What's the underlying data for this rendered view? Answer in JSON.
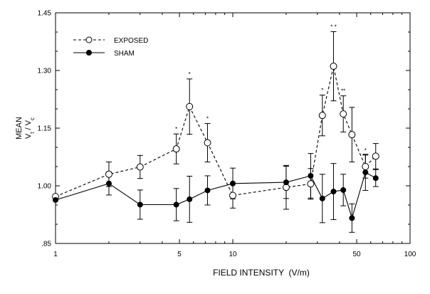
{
  "chart_data": {
    "type": "line",
    "x_scale": "log",
    "xlim": [
      1,
      100
    ],
    "ylim": [
      0.85,
      1.45
    ],
    "xlabel": "FIELD INTENSITY  (V/m)",
    "ylabel_line1": "MEAN",
    "ylabel_ratio": {
      "v": "V",
      "num_sub": "t",
      "sep": " / ",
      "den_sub": "c"
    },
    "x_ticks": [
      {
        "value": 1,
        "label": "1"
      },
      {
        "value": 5,
        "label": "5"
      },
      {
        "value": 10,
        "label": "10"
      },
      {
        "value": 50,
        "label": "50"
      },
      {
        "value": 100,
        "label": "100"
      }
    ],
    "y_ticks": [
      {
        "value": 0.85,
        "label": ".85"
      },
      {
        "value": 1.0,
        "label": "1.00"
      },
      {
        "value": 1.15,
        "label": "1.15"
      },
      {
        "value": 1.3,
        "label": "1.30"
      },
      {
        "value": 1.45,
        "label": "1.45"
      }
    ],
    "legend": {
      "position": "top-left"
    },
    "series": [
      {
        "name": "EXPOSED",
        "line_style": "dashed",
        "marker": "open-circle",
        "points": [
          {
            "x": 1.0,
            "y": 0.972,
            "err": 0.0
          },
          {
            "x": 2.0,
            "y": 1.03,
            "err": 0.032
          },
          {
            "x": 3.0,
            "y": 1.049,
            "err": 0.03
          },
          {
            "x": 4.8,
            "y": 1.096,
            "err": 0.039,
            "sig": "*"
          },
          {
            "x": 5.7,
            "y": 1.206,
            "err": 0.072,
            "sig": "*"
          },
          {
            "x": 7.2,
            "y": 1.112,
            "err": 0.05,
            "sig": "*"
          },
          {
            "x": 10.0,
            "y": 0.975,
            "err": 0.033
          },
          {
            "x": 20.0,
            "y": 0.996,
            "err": 0.057
          },
          {
            "x": 27.5,
            "y": 1.005,
            "err": 0.04
          },
          {
            "x": 32.0,
            "y": 1.183,
            "err": 0.053,
            "sig": "*"
          },
          {
            "x": 37.0,
            "y": 1.311,
            "err": 0.09,
            "sig": "* *"
          },
          {
            "x": 42.0,
            "y": 1.187,
            "err": 0.047,
            "sig": "**"
          },
          {
            "x": 47.0,
            "y": 1.133,
            "err": 0.071
          },
          {
            "x": 56.0,
            "y": 1.05,
            "err": 0.03,
            "sig": "*"
          },
          {
            "x": 64.0,
            "y": 1.077,
            "err": 0.033
          }
        ]
      },
      {
        "name": "SHAM",
        "line_style": "solid",
        "marker": "filled-circle",
        "points": [
          {
            "x": 1.0,
            "y": 0.963,
            "err": 0.0
          },
          {
            "x": 2.0,
            "y": 1.006,
            "err": 0.03
          },
          {
            "x": 3.0,
            "y": 0.951,
            "err": 0.038
          },
          {
            "x": 4.8,
            "y": 0.951,
            "err": 0.042
          },
          {
            "x": 5.7,
            "y": 0.965,
            "err": 0.06
          },
          {
            "x": 7.2,
            "y": 0.988,
            "err": 0.038
          },
          {
            "x": 10.0,
            "y": 1.006,
            "err": 0.04
          },
          {
            "x": 20.0,
            "y": 1.009,
            "err": 0.042
          },
          {
            "x": 27.5,
            "y": 1.026,
            "err": 0.058
          },
          {
            "x": 32.0,
            "y": 0.967,
            "err": 0.063
          },
          {
            "x": 37.0,
            "y": 0.985,
            "err": 0.073
          },
          {
            "x": 42.0,
            "y": 0.989,
            "err": 0.041
          },
          {
            "x": 47.0,
            "y": 0.916,
            "err": 0.037
          },
          {
            "x": 56.0,
            "y": 1.035,
            "err": 0.047
          },
          {
            "x": 64.0,
            "y": 1.02,
            "err": 0.022
          }
        ]
      }
    ]
  }
}
